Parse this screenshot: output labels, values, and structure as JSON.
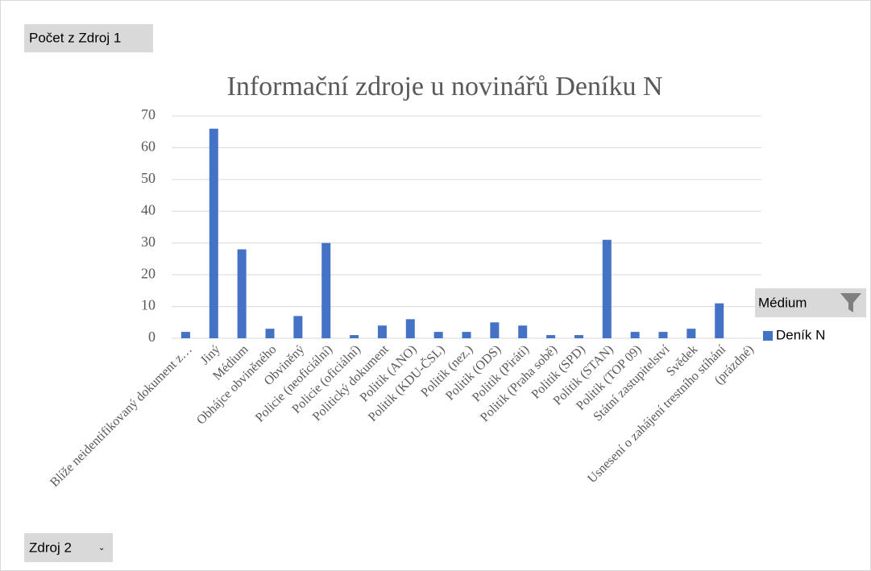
{
  "chart_data": {
    "type": "bar",
    "title": "Informační zdroje u novinářů Deníku N",
    "value_field": "Počet z Zdroj 1",
    "axis_field": "Zdroj 2",
    "legend_field": "Médium",
    "categories": [
      "Blíže neidentifikovaný dokument z…",
      "Jiný",
      "Médium",
      "Obhájce obviněného",
      "Obviněný",
      "Policie (neoficiální)",
      "Policie (oficiální)",
      "Politický dokument",
      "Politik (ANO)",
      "Politik (KDU-ČSL)",
      "Politik (nez.)",
      "Politik (ODS)",
      "Politik (Piráti)",
      "Politik (Praha sobě)",
      "Politik (SPD)",
      "Politik (STAN)",
      "Politik (TOP 09)",
      "Státní zastupitelství",
      "Svědek",
      "Usnesení o zahájení trestního stíhání",
      "(prázdné)"
    ],
    "series": [
      {
        "name": "Deník N",
        "color": "#4472c4",
        "values": [
          2,
          66,
          28,
          3,
          7,
          30,
          1,
          4,
          6,
          2,
          2,
          5,
          4,
          1,
          1,
          31,
          2,
          2,
          3,
          11,
          null
        ]
      }
    ],
    "ylim": [
      0,
      70
    ],
    "yticks": [
      0,
      10,
      20,
      30,
      40,
      50,
      60,
      70
    ],
    "grid": true,
    "legend": "right"
  }
}
